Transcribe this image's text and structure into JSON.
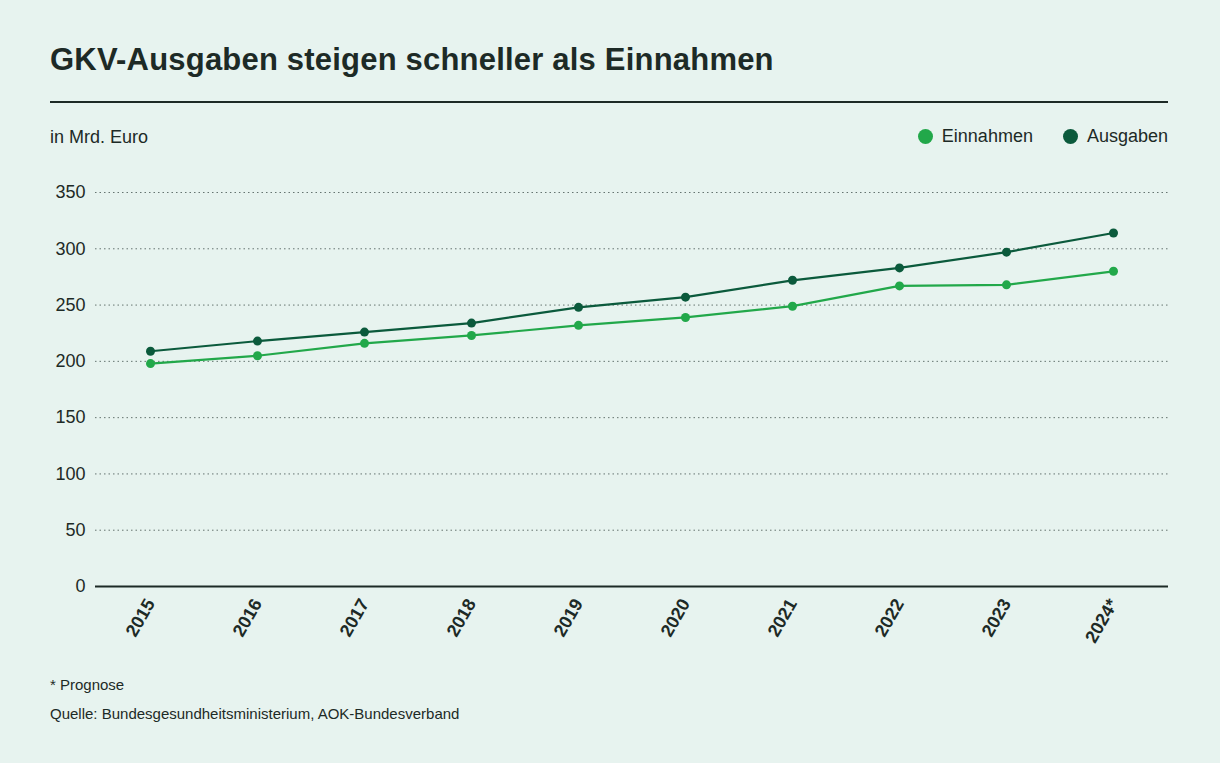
{
  "chart_data": {
    "type": "line",
    "title": "GKV-Ausgaben steigen schneller als Einnahmen",
    "subtitle": "in Mrd. Euro",
    "categories": [
      "2015",
      "2016",
      "2017",
      "2018",
      "2019",
      "2020",
      "2021",
      "2022",
      "2023",
      "2024*"
    ],
    "series": [
      {
        "name": "Einnahmen",
        "color": "#22a84a",
        "marker": "circle",
        "values": [
          198,
          205,
          216,
          223,
          232,
          239,
          249,
          267,
          268,
          280
        ]
      },
      {
        "name": "Ausgaben",
        "color": "#0b5a3c",
        "marker": "circle",
        "values": [
          209,
          218,
          226,
          234,
          248,
          257,
          272,
          283,
          297,
          314
        ]
      }
    ],
    "ylim": [
      0,
      350
    ],
    "yticks": [
      0,
      50,
      100,
      150,
      200,
      250,
      300,
      350
    ],
    "grid": true,
    "legend": "top-right",
    "annotations": [
      "* Prognose",
      "Quelle: Bundesgesundheitsministerium, AOK-Bundesverband"
    ]
  }
}
